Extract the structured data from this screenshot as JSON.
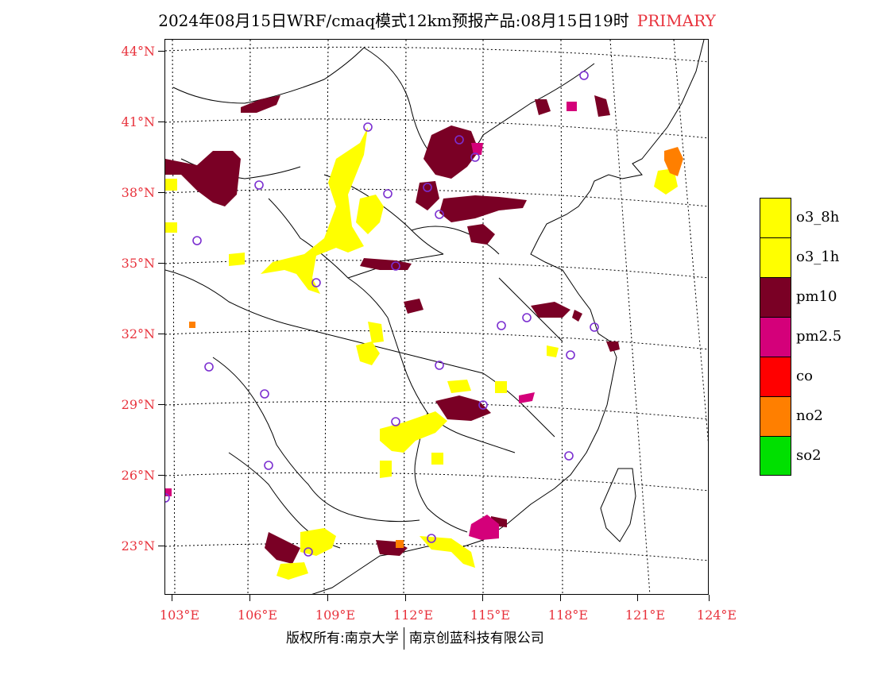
{
  "title": {
    "main": "2024年08月15日WRF/cmaq模式12km预报产品:08月15日19时",
    "pollutant": "PRIMARY",
    "accent_color": "#e8323c"
  },
  "axes": {
    "lat_labels": [
      "44°N",
      "41°N",
      "38°N",
      "35°N",
      "32°N",
      "29°N",
      "26°N",
      "23°N"
    ],
    "lon_labels": [
      "103°E",
      "106°E",
      "109°E",
      "112°E",
      "115°E",
      "118°E",
      "121°E",
      "124°E"
    ],
    "label_color": "#e8323c"
  },
  "legend": {
    "items": [
      {
        "label": "o3_8h",
        "color": "#ffff00"
      },
      {
        "label": "o3_1h",
        "color": "#ffff00"
      },
      {
        "label": "pm10",
        "color": "#7a0025"
      },
      {
        "label": "pm2.5",
        "color": "#d4007a"
      },
      {
        "label": "co",
        "color": "#ff0000"
      },
      {
        "label": "no2",
        "color": "#ff7f00"
      },
      {
        "label": "so2",
        "color": "#00e000"
      }
    ]
  },
  "footer": {
    "left": "版权所有:南京大学",
    "right": "南京创蓝科技有限公司"
  },
  "map": {
    "colors": {
      "o3": "#ffff00",
      "pm10": "#7a0025",
      "pm25": "#d4007a",
      "no2": "#ff7f00",
      "city_marker": "#7b2fd0",
      "border": "#000000"
    }
  }
}
